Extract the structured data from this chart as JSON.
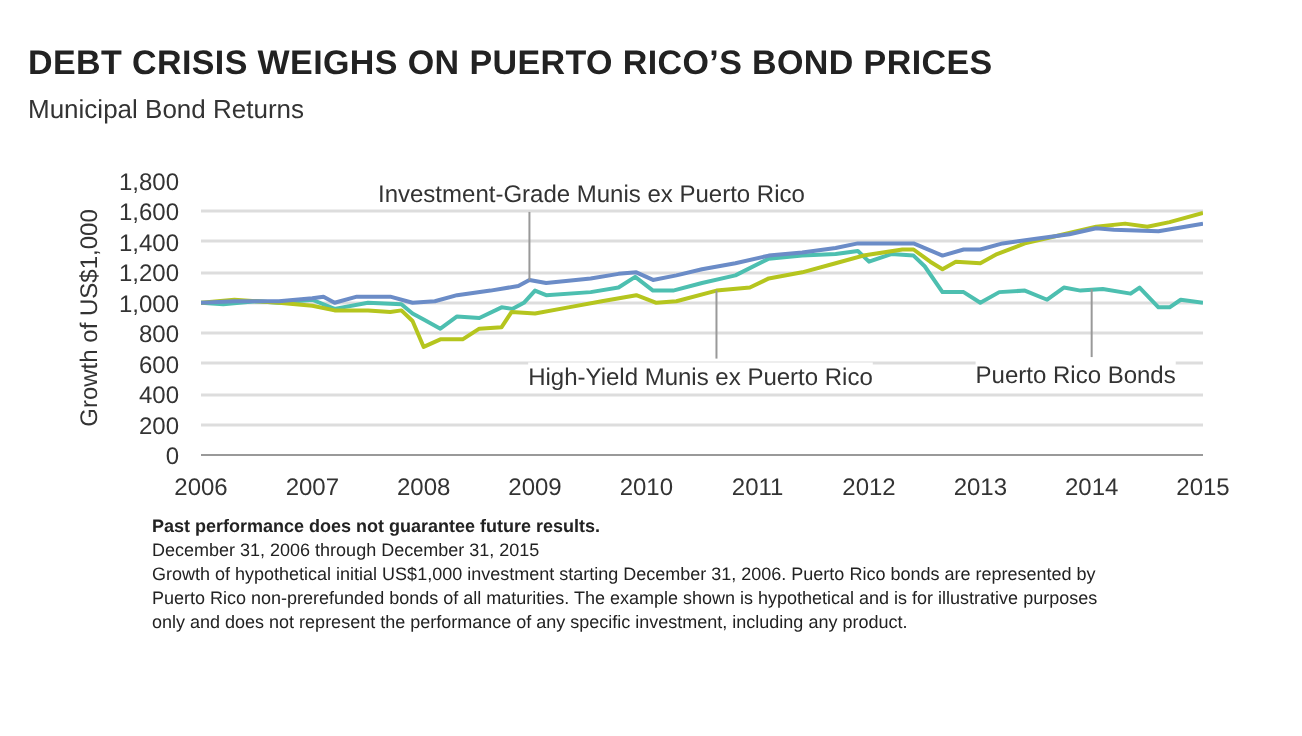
{
  "chart_data": {
    "type": "line",
    "title": "DEBT CRISIS WEIGHS ON PUERTO RICO’S BOND PRICES",
    "subtitle": "Municipal Bond Returns",
    "ylabel": "Growth of US$1,000",
    "xlim": [
      2006,
      2015
    ],
    "xticks": [
      2006,
      2007,
      2008,
      2009,
      2010,
      2011,
      2012,
      2013,
      2014,
      2015
    ],
    "ylim": [
      0,
      1800
    ],
    "yticks": [
      0,
      200,
      400,
      600,
      800,
      {
        "value": 1000,
        "label": "1,000"
      },
      {
        "value": 1200,
        "label": "1,200"
      },
      {
        "value": 1400,
        "label": "1,400"
      },
      {
        "value": 1600,
        "label": "1,600"
      },
      {
        "value": 1800,
        "label": "1,800"
      }
    ],
    "grid": "y",
    "line_style": "solid",
    "marker": "none",
    "series": [
      {
        "color": "#4dbfb0",
        "x": [
          2006,
          2006.2,
          2006.5,
          2006.7,
          2007,
          2007.2,
          2007.5,
          2007.8,
          2007.9,
          2008.0,
          2008.15,
          2008.3,
          2008.5,
          2008.7,
          2008.8,
          2008.9,
          2009.0,
          2009.1,
          2009.5,
          2009.75,
          2009.9,
          2010.06,
          2010.24,
          2010.5,
          2010.8,
          2011.1,
          2011.4,
          2011.7,
          2011.9,
          2012.0,
          2012.2,
          2012.4,
          2012.5,
          2012.66,
          2012.85,
          2013.0,
          2013.17,
          2013.4,
          2013.6,
          2013.75,
          2013.9,
          2014.1,
          2014.35,
          2014.43,
          2014.6,
          2014.7,
          2014.8,
          2015
        ],
        "values": [
          1000,
          990,
          1010,
          1000,
          1020,
          960,
          1000,
          990,
          930,
          890,
          830,
          910,
          900,
          970,
          960,
          1000,
          1080,
          1050,
          1070,
          1100,
          1170,
          1080,
          1080,
          1130,
          1180,
          1290,
          1310,
          1320,
          1340,
          1270,
          1320,
          1310,
          1240,
          1070,
          1070,
          1000,
          1070,
          1080,
          1020,
          1100,
          1080,
          1090,
          1060,
          1100,
          970,
          970,
          1020,
          1000
        ]
      },
      {
        "color": "#b5c51e",
        "x": [
          2006,
          2006.3,
          2006.5,
          2006.7,
          2007,
          2007.2,
          2007.5,
          2007.7,
          2007.8,
          2007.9,
          2008.0,
          2008.15,
          2008.35,
          2008.5,
          2008.7,
          2008.79,
          2009.0,
          2009.3,
          2009.6,
          2009.91,
          2010.09,
          2010.27,
          2010.63,
          2010.93,
          2011.1,
          2011.4,
          2011.7,
          2011.95,
          2012.3,
          2012.4,
          2012.55,
          2012.66,
          2012.78,
          2013.0,
          2013.15,
          2013.4,
          2013.75,
          2014.04,
          2014.3,
          2014.5,
          2014.7,
          2015
        ],
        "values": [
          1000,
          1020,
          1010,
          1000,
          980,
          950,
          950,
          940,
          950,
          880,
          710,
          760,
          760,
          830,
          840,
          940,
          930,
          970,
          1010,
          1050,
          1000,
          1010,
          1080,
          1100,
          1160,
          1200,
          1260,
          1310,
          1350,
          1350,
          1270,
          1220,
          1270,
          1260,
          1320,
          1390,
          1450,
          1500,
          1520,
          1500,
          1530,
          1590
        ]
      },
      {
        "color": "#6b8cc7",
        "x": [
          2006,
          2006.3,
          2006.7,
          2007,
          2007.1,
          2007.2,
          2007.4,
          2007.7,
          2007.9,
          2008.1,
          2008.3,
          2008.6,
          2008.85,
          2008.95,
          2009.1,
          2009.5,
          2009.75,
          2009.91,
          2010.06,
          2010.27,
          2010.5,
          2010.8,
          2011.1,
          2011.4,
          2011.7,
          2011.9,
          2012.3,
          2012.4,
          2012.66,
          2012.85,
          2013.0,
          2013.2,
          2013.5,
          2013.8,
          2014.04,
          2014.2,
          2014.6,
          2015
        ],
        "values": [
          1000,
          1010,
          1010,
          1030,
          1040,
          1000,
          1040,
          1040,
          1000,
          1010,
          1050,
          1080,
          1110,
          1150,
          1130,
          1160,
          1190,
          1200,
          1150,
          1180,
          1220,
          1260,
          1310,
          1330,
          1360,
          1390,
          1390,
          1390,
          1310,
          1350,
          1350,
          1390,
          1420,
          1450,
          1490,
          1480,
          1470,
          1520
        ]
      }
    ],
    "annotations": [
      {
        "text": "Investment-Grade Munis ex Puerto Rico",
        "x": 2008.95,
        "y": 1150
      },
      {
        "text": "High-Yield Munis ex Puerto Rico",
        "x": 2010.63,
        "y": 1080
      },
      {
        "text": "Puerto Rico Bonds",
        "x": 2014.0,
        "y": 1090
      },
      "Past performance does not guarantee future results.",
      "December 31, 2006 through December 31, 2015",
      "Growth of hypothetical initial US$1,000 investment starting December 31, 2006. Puerto Rico bonds are represented by Puerto Rico non-prerefunded bonds of all maturities. The example shown is hypothetical and is for illustrative purposes only and does not represent the performance of any specific investment, including any product."
    ]
  }
}
